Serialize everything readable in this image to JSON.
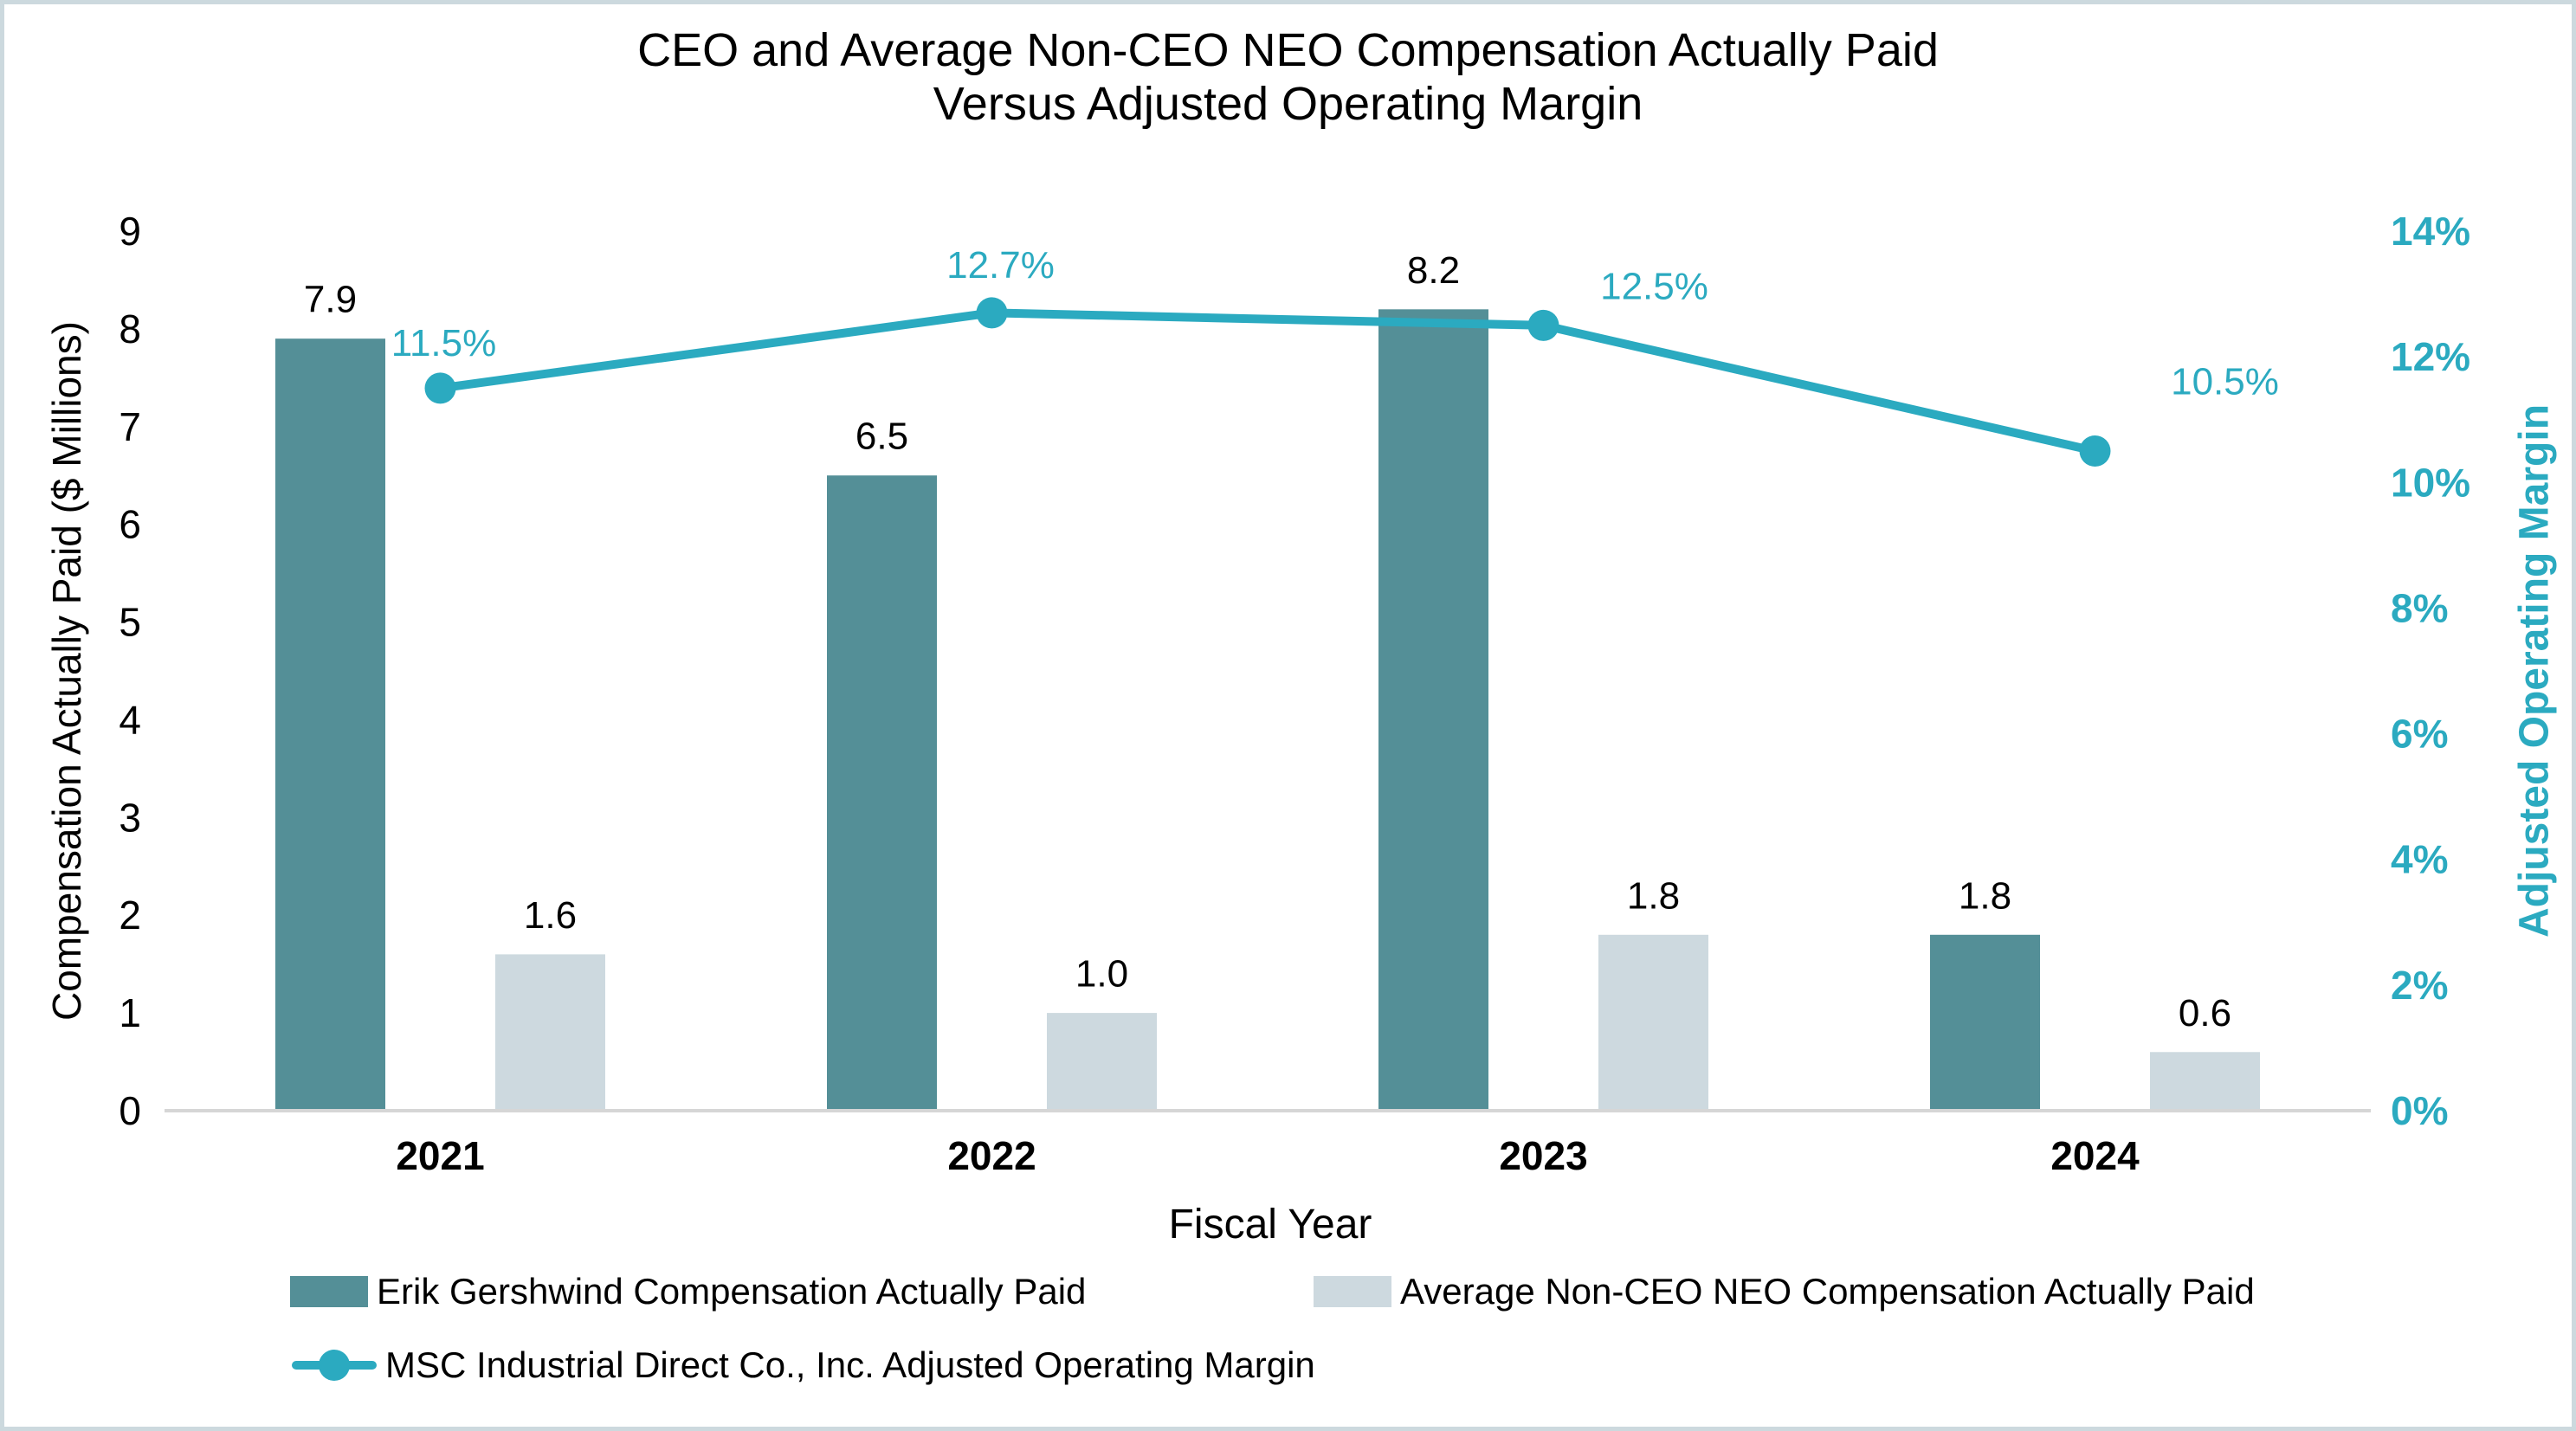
{
  "frame": {
    "border_color": "#ccd9de",
    "background_color": "#ffffff"
  },
  "chart_data": {
    "type": "bar+line (combo, dual axis)",
    "title_lines": [
      "CEO and Average Non-CEO NEO Compensation Actually Paid",
      "Versus Adjusted Operating Margin"
    ],
    "categories": [
      "2021",
      "2022",
      "2023",
      "2024"
    ],
    "xlabel": "Fiscal Year",
    "left_axis": {
      "label": "Compensation Actually Paid ($ Millions)",
      "min": 0,
      "max": 9,
      "ticks": [
        "0",
        "1",
        "2",
        "3",
        "4",
        "5",
        "6",
        "7",
        "8",
        "9"
      ]
    },
    "right_axis": {
      "label": "Adjusted Operating Margin",
      "min_pct": 0,
      "max_pct": 14,
      "ticks": [
        "0%",
        "2%",
        "4%",
        "6%",
        "8%",
        "10%",
        "12%",
        "14%"
      ]
    },
    "grid": "off",
    "legend_position": "bottom-left",
    "series": [
      {
        "name": "Erik Gershwind Compensation Actually Paid",
        "type": "bar",
        "axis": "left",
        "color": "#548f97",
        "values": [
          7.9,
          6.5,
          8.2,
          1.8
        ],
        "labels": [
          "7.9",
          "6.5",
          "8.2",
          "1.8"
        ]
      },
      {
        "name": "Average Non-CEO NEO Compensation Actually Paid",
        "type": "bar",
        "axis": "left",
        "color": "#cdd9df",
        "values": [
          1.6,
          1.0,
          1.8,
          0.6
        ],
        "labels": [
          "1.6",
          "1.0",
          "1.8",
          "0.6"
        ]
      },
      {
        "name": "MSC Industrial Direct Co., Inc. Adjusted Operating Margin",
        "type": "line",
        "axis": "right",
        "color": "#2baac0",
        "values_pct": [
          11.5,
          12.7,
          12.5,
          10.5
        ],
        "labels": [
          "11.5%",
          "12.7%",
          "12.5%",
          "10.5%"
        ]
      }
    ],
    "axis_line_color": "#d6d6d6",
    "text_color": "#000000"
  }
}
